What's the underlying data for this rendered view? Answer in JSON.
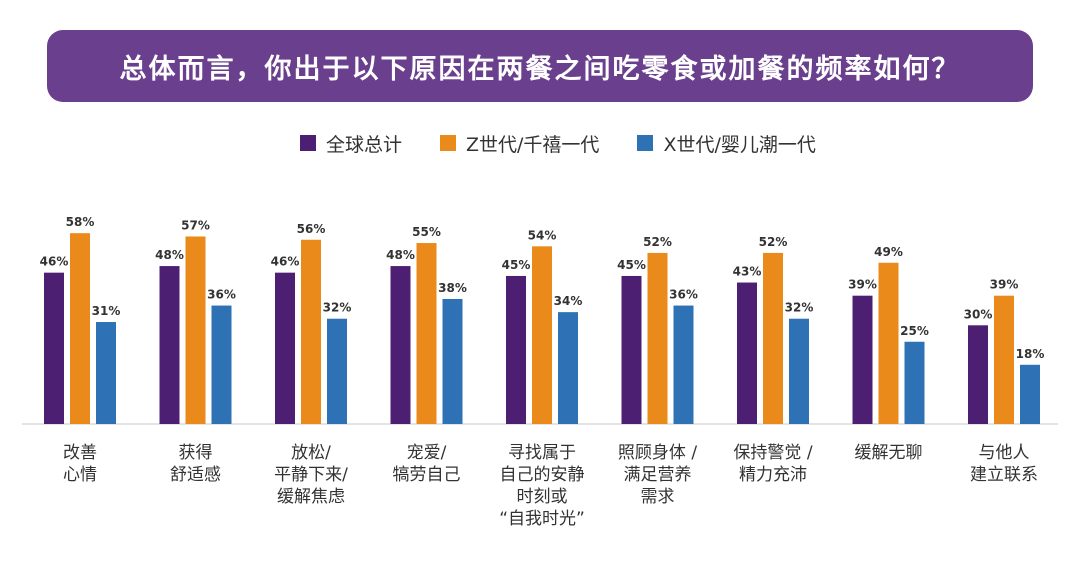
{
  "banner": {
    "title": "总体而言，你出于以下原因在两餐之间吃零食或加餐的频率如何？"
  },
  "colors": {
    "banner_bg": "#6a3f8d",
    "series": [
      "#4d1f72",
      "#ea8a1b",
      "#2e72b5"
    ]
  },
  "chart_data": {
    "type": "bar",
    "title": "总体而言，你出于以下原因在两餐之间吃零食或加餐的频率如何？",
    "legend_position": "top",
    "grid": false,
    "value_suffix": "%",
    "ylim": [
      0,
      70
    ],
    "categories": [
      [
        "改善",
        "心情"
      ],
      [
        "获得",
        "舒适感"
      ],
      [
        "放松/",
        "平静下来/",
        "缓解焦虑"
      ],
      [
        "宠爱/",
        "犒劳自己"
      ],
      [
        "寻找属于",
        "自己的安静",
        "时刻或",
        "“自我时光”"
      ],
      [
        "照顾身体 /",
        "满足营养",
        "需求"
      ],
      [
        "保持警觉 /",
        "精力充沛"
      ],
      [
        "缓解无聊"
      ],
      [
        "与他人",
        "建立联系"
      ]
    ],
    "series": [
      {
        "name": "全球总计",
        "color": "#4d1f72",
        "values": [
          46,
          48,
          46,
          48,
          45,
          45,
          43,
          39,
          30
        ]
      },
      {
        "name": "Z世代/千禧一代",
        "color": "#ea8a1b",
        "values": [
          58,
          57,
          56,
          55,
          54,
          52,
          52,
          49,
          39
        ]
      },
      {
        "name": "X世代/婴儿潮一代",
        "color": "#2e72b5",
        "values": [
          31,
          36,
          32,
          38,
          34,
          36,
          32,
          25,
          18
        ]
      }
    ]
  }
}
